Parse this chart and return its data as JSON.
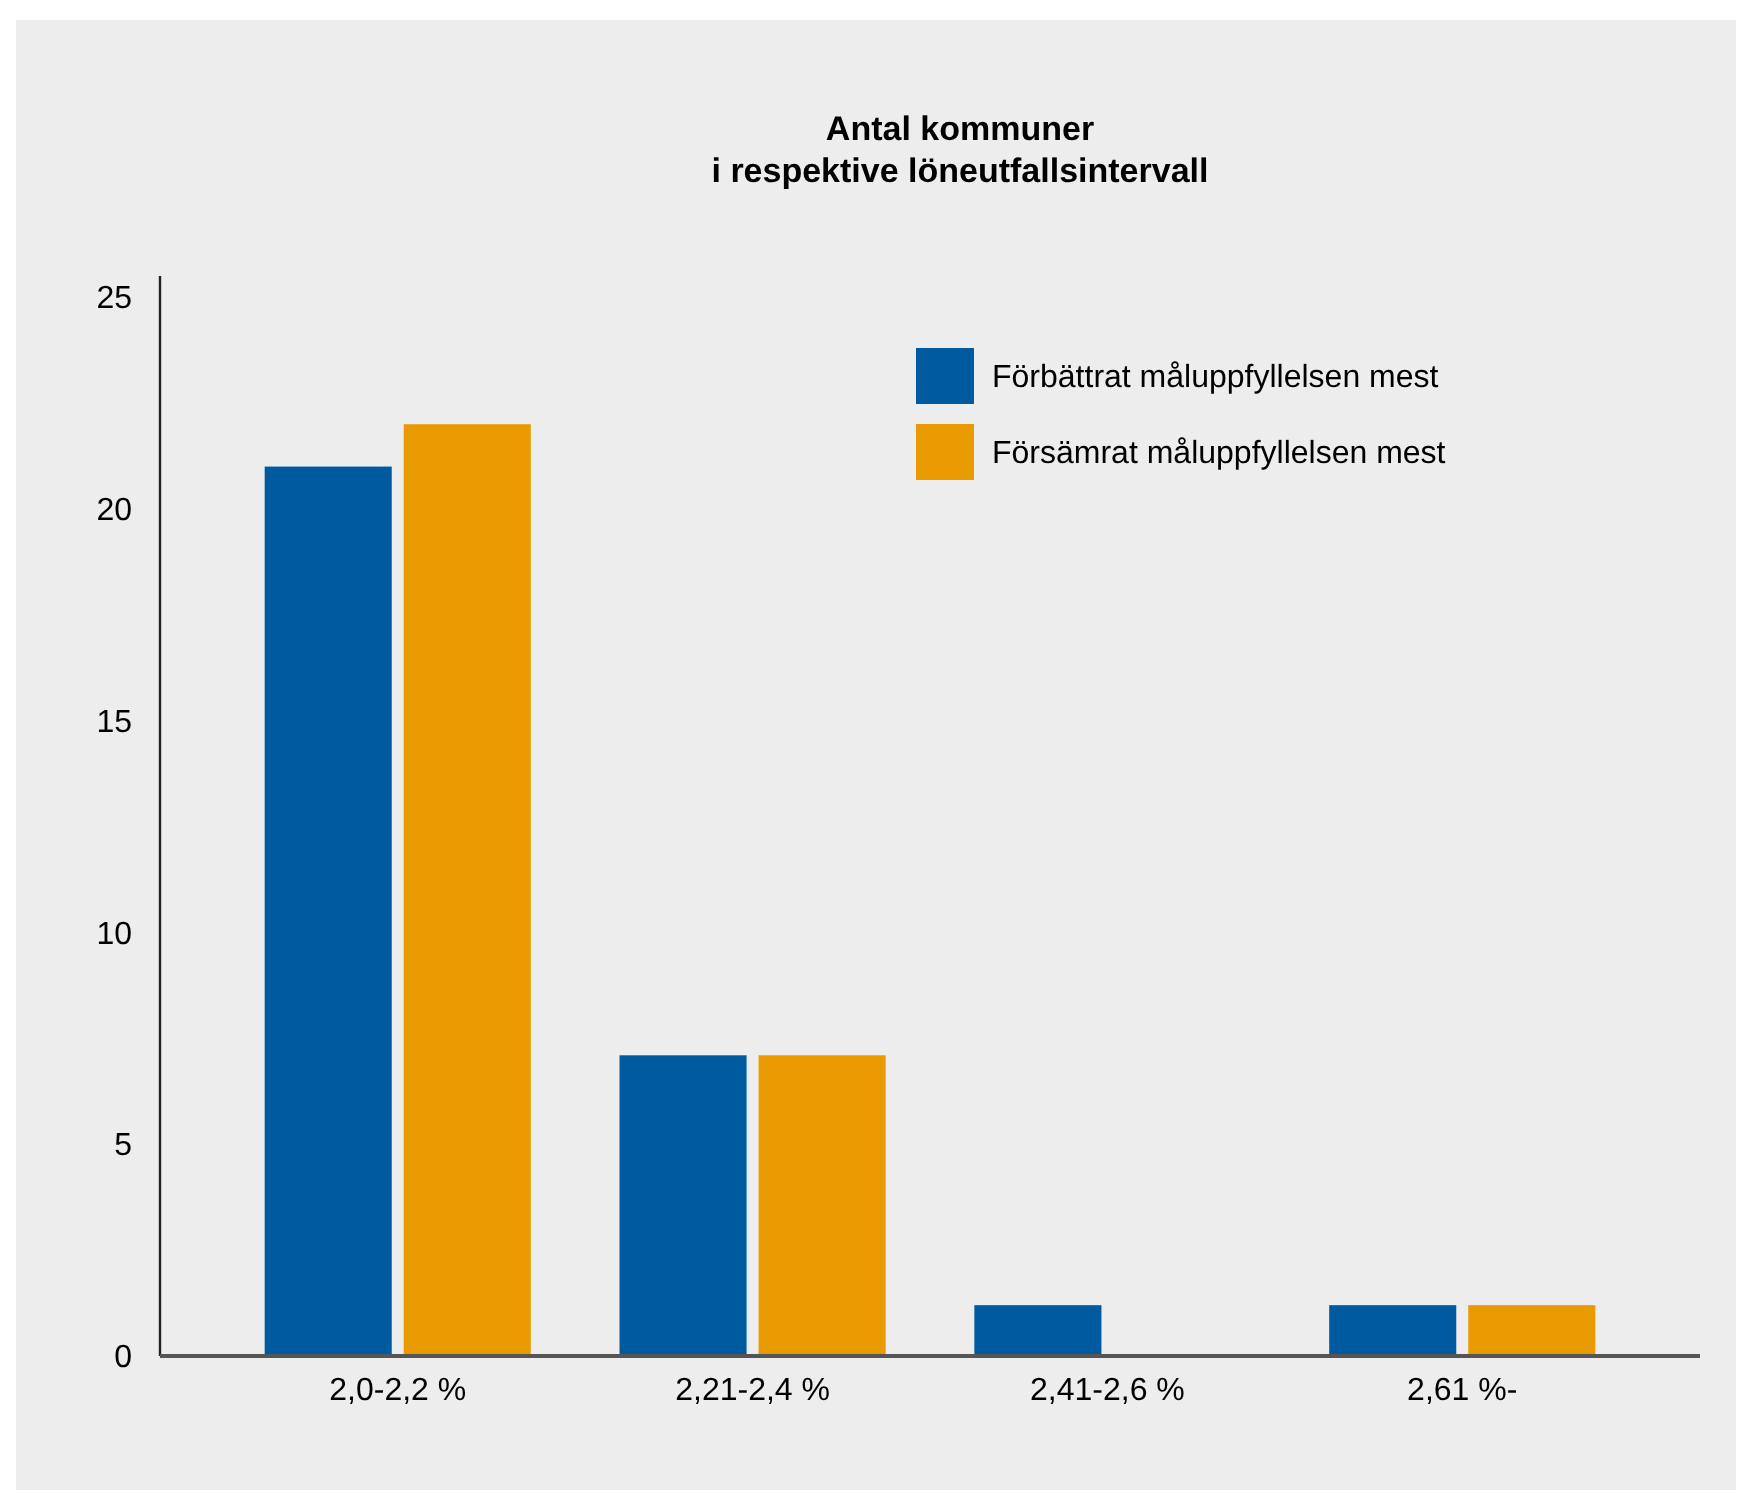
{
  "chart_data": {
    "type": "bar",
    "title": "Antal kommuner\ni respektive löneutfallsintervall",
    "categories": [
      "2,0-2,2 %",
      "2,21-2,4 %",
      "2,41-2,6 %",
      "2,61 %-"
    ],
    "series": [
      {
        "name": "Förbättrat måluppfyllelsen mest",
        "color": "#005aa0",
        "values": [
          21,
          7.1,
          1.2,
          1.2
        ]
      },
      {
        "name": "Försämrat måluppfyllelsen mest",
        "color": "#e89a00",
        "values": [
          22,
          7.1,
          0,
          1.2
        ]
      }
    ],
    "ylim": [
      0,
      25.5
    ],
    "yticks": [
      0,
      5,
      10,
      15,
      20,
      25
    ],
    "grid": false,
    "legend": "top right"
  }
}
